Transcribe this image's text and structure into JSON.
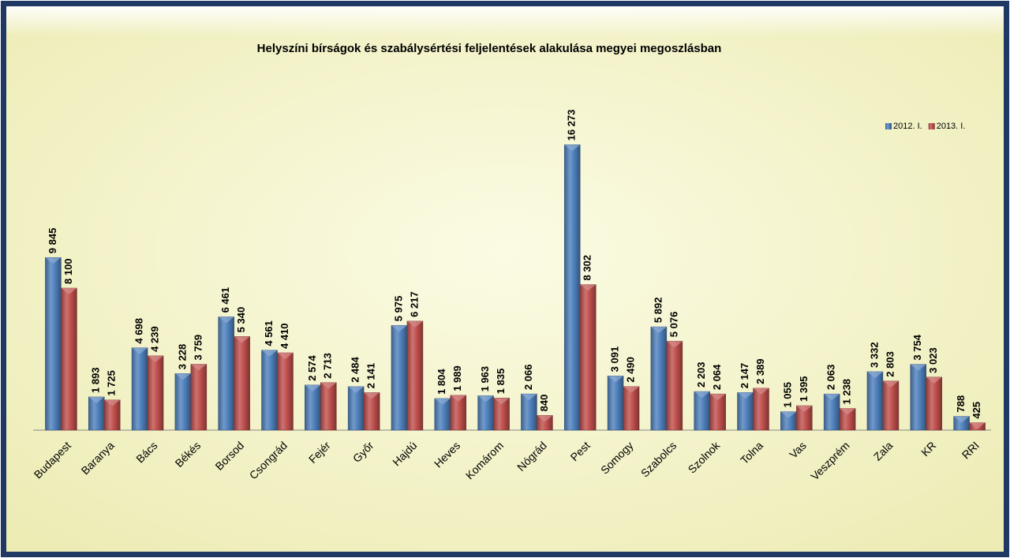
{
  "chart_data": {
    "type": "bar",
    "title": "Helyszíni bírságok és szabálysértési feljelentések alakulása megyei megoszlásban",
    "categories": [
      "Budapest",
      "Baranya",
      "Bács",
      "Békés",
      "Borsod",
      "Csongrád",
      "Fejér",
      "Győr",
      "Hajdú",
      "Heves",
      "Komárom",
      "Nógrád",
      "Pest",
      "Somogy",
      "Szabolcs",
      "Szolnok",
      "Tolna",
      "Vas",
      "Veszprém",
      "Zala",
      "KR",
      "RRI"
    ],
    "series": [
      {
        "name": "2012. I.",
        "color": "#4f81bd",
        "values": [
          9845,
          1893,
          4698,
          3228,
          6461,
          4561,
          2574,
          2484,
          5975,
          1804,
          1963,
          2066,
          16273,
          3091,
          5892,
          2203,
          2147,
          1055,
          2063,
          3332,
          3754,
          788
        ],
        "value_labels": [
          "9 845",
          "1 893",
          "4 698",
          "3 228",
          "6 461",
          "4 561",
          "2 574",
          "2 484",
          "5 975",
          "1 804",
          "1 963",
          "2 066",
          "16 273",
          "3 091",
          "5 892",
          "2 203",
          "2 147",
          "1 055",
          "2 063",
          "3 332",
          "3 754",
          "788"
        ]
      },
      {
        "name": "2013. I.",
        "color": "#c0504d",
        "values": [
          8100,
          1725,
          4239,
          3759,
          5340,
          4410,
          2713,
          2141,
          6217,
          1989,
          1835,
          840,
          8302,
          2490,
          5076,
          2064,
          2389,
          1395,
          1238,
          2803,
          3023,
          425
        ],
        "value_labels": [
          "8 100",
          "1 725",
          "4 239",
          "3 759",
          "5 340",
          "4 410",
          "2 713",
          "2 141",
          "6 217",
          "1 989",
          "1 835",
          "840",
          "8 302",
          "2 490",
          "5 076",
          "2 064",
          "2 389",
          "1 395",
          "1 238",
          "2 803",
          "3 023",
          "425"
        ]
      }
    ],
    "ylim": [
      0,
      18000
    ],
    "legend": "top-right"
  }
}
